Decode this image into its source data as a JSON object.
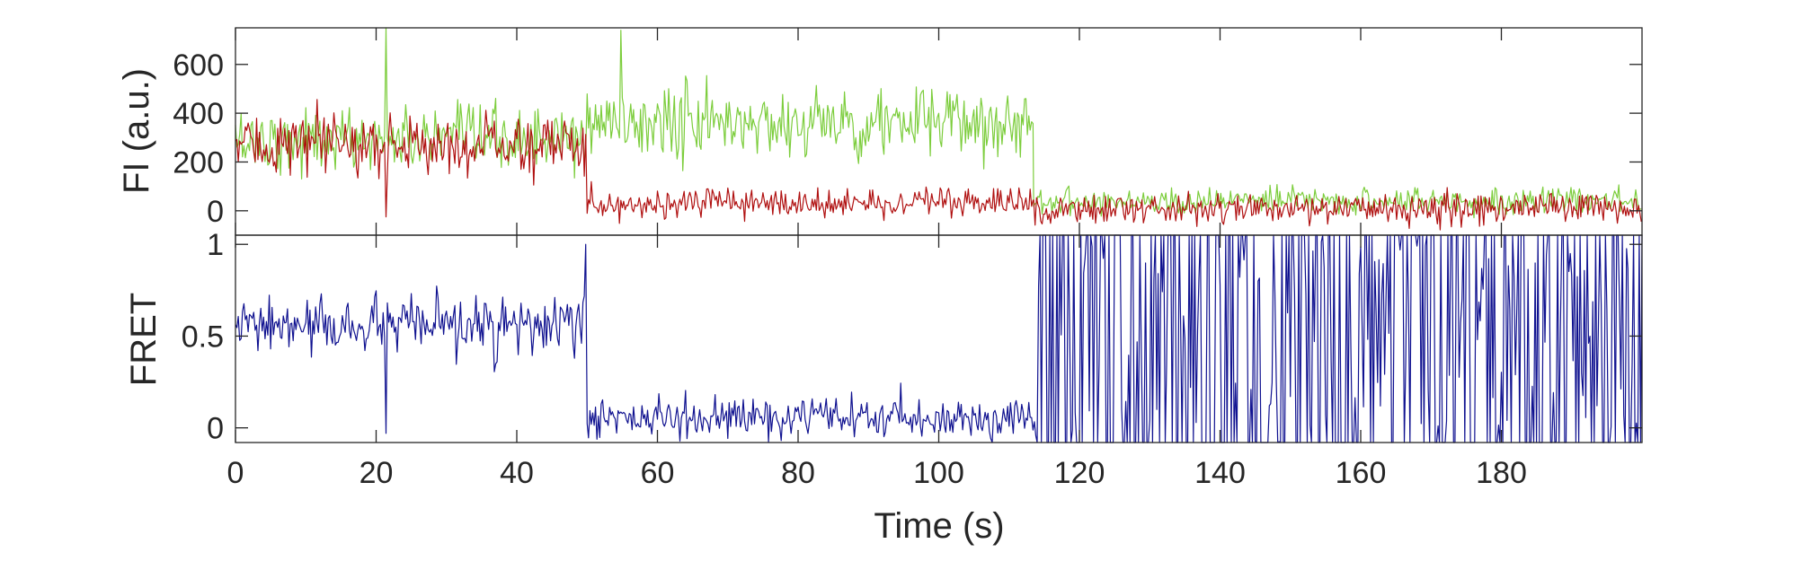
{
  "chart_data": [
    {
      "type": "line",
      "ylabel": "FI (a.u.)",
      "xlim": [
        0,
        200
      ],
      "ylim": [
        -100,
        750
      ],
      "yticks": [
        0,
        200,
        400,
        600
      ],
      "grid": false,
      "colors": {
        "donor": "#7ccd3c",
        "acceptor": "#b01010"
      },
      "series": [
        {
          "color": "#7ccd3c",
          "segments": [
            {
              "x_start": 0,
              "x_end": 50,
              "mean": 290,
              "noise": 85
            },
            {
              "x_start": 50,
              "x_end": 113.5,
              "mean": 360,
              "noise": 95
            },
            {
              "x_start": 113.5,
              "x_end": 200,
              "mean": 40,
              "noise": 35
            }
          ],
          "spikes": [
            [
              21.3,
              750
            ],
            [
              54.8,
              740
            ]
          ]
        },
        {
          "color": "#b01010",
          "segments": [
            {
              "x_start": 0,
              "x_end": 50,
              "mean": 270,
              "noise": 80
            },
            {
              "x_start": 50,
              "x_end": 113.5,
              "mean": 30,
              "noise": 40
            },
            {
              "x_start": 113.5,
              "x_end": 200,
              "mean": 10,
              "noise": 40
            }
          ],
          "spikes": [
            [
              21.3,
              -25
            ]
          ]
        }
      ]
    },
    {
      "type": "line",
      "xlabel": "Time (s)",
      "ylabel": "FRET",
      "xlim": [
        0,
        200
      ],
      "ylim": [
        -0.08,
        1.05
      ],
      "xticks": [
        0,
        20,
        40,
        60,
        80,
        100,
        120,
        140,
        160,
        180
      ],
      "yticks": [
        0,
        0.5,
        1
      ],
      "ytick_labels": [
        "0",
        "0.5",
        "1"
      ],
      "grid": false,
      "series": [
        {
          "color": "#101290",
          "segments": [
            {
              "x_start": 0,
              "x_end": 50,
              "mean": 0.55,
              "noise": 0.1
            },
            {
              "x_start": 50,
              "x_end": 114,
              "mean": 0.05,
              "noise": 0.07
            },
            {
              "x_start": 114,
              "x_end": 200,
              "mean": 0.5,
              "noise": 0.5,
              "style": "switching"
            }
          ],
          "spikes": [
            [
              21.3,
              -0.03
            ],
            [
              49.9,
              1.0
            ]
          ]
        }
      ]
    }
  ]
}
